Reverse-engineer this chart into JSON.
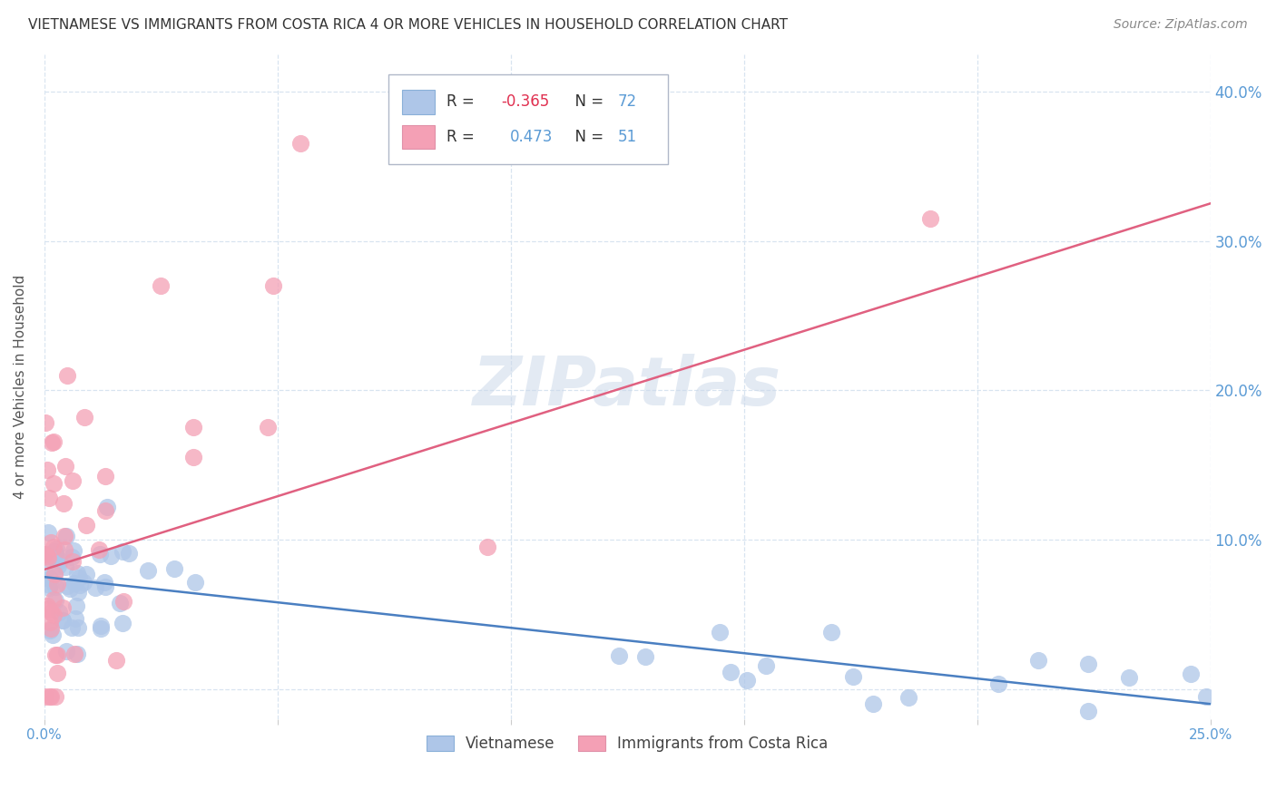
{
  "title": "VIETNAMESE VS IMMIGRANTS FROM COSTA RICA 4 OR MORE VEHICLES IN HOUSEHOLD CORRELATION CHART",
  "source": "Source: ZipAtlas.com",
  "ylabel": "4 or more Vehicles in Household",
  "xlim": [
    0.0,
    0.25
  ],
  "ylim": [
    -0.02,
    0.425
  ],
  "yticks": [
    0.0,
    0.1,
    0.2,
    0.3,
    0.4
  ],
  "ytick_labels": [
    "",
    "10.0%",
    "20.0%",
    "30.0%",
    "40.0%"
  ],
  "xticks": [
    0.0,
    0.05,
    0.1,
    0.15,
    0.2,
    0.25
  ],
  "xtick_labels": [
    "0.0%",
    "",
    "",
    "",
    "",
    "25.0%"
  ],
  "watermark": "ZIPatlas",
  "series1_color": "#aec6e8",
  "series2_color": "#f4a0b5",
  "line1_color": "#4a7fc1",
  "line2_color": "#e06080",
  "line1_x0": 0.0,
  "line1_y0": 0.075,
  "line1_x1": 0.25,
  "line1_y1": -0.01,
  "line2_x0": 0.0,
  "line2_y0": 0.08,
  "line2_x1": 0.25,
  "line2_y1": 0.325,
  "tick_color": "#5b9bd5",
  "grid_color": "#d8e4f0",
  "background_color": "#ffffff",
  "title_fontsize": 11,
  "source_fontsize": 10,
  "ylabel_fontsize": 11,
  "legend_label1": "Vietnamese",
  "legend_label2": "Immigrants from Costa Rica",
  "R1_str": "-0.365",
  "N1_str": "72",
  "R2_str": "0.473",
  "N2_str": "51"
}
